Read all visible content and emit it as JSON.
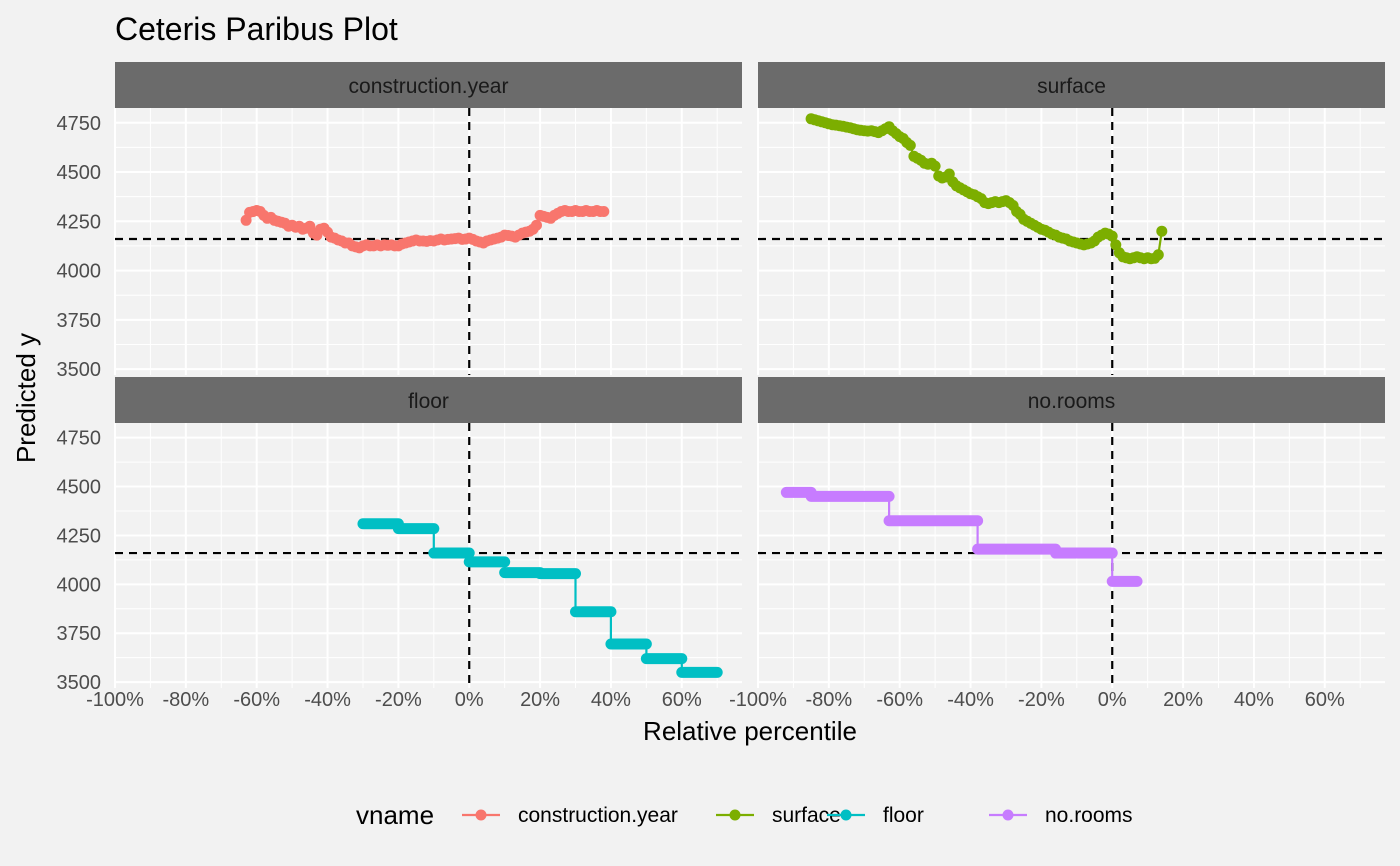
{
  "chart_data": {
    "type": "line",
    "title": "Ceteris Paribus Plot",
    "xlabel": "Relative percentile",
    "ylabel": "Predicted y",
    "xlim": [
      -100,
      77
    ],
    "ylim": [
      3470,
      4825
    ],
    "x_ticks": [
      -100,
      -80,
      -60,
      -40,
      -20,
      0,
      20,
      40,
      60
    ],
    "x_tick_labels": [
      "-100%",
      "-80%",
      "-60%",
      "-40%",
      "-20%",
      "0%",
      "20%",
      "40%",
      "60%"
    ],
    "y_ticks": [
      3500,
      3750,
      4000,
      4250,
      4500,
      4750
    ],
    "y_tick_labels": [
      "3500",
      "3750",
      "4000",
      "4250",
      "4500",
      "4750"
    ],
    "reference_lines": {
      "x": 0,
      "y": 4160
    },
    "grid": true,
    "legend": {
      "title": "vname",
      "position": "bottom",
      "entries": [
        "construction.year",
        "surface",
        "floor",
        "no.rooms"
      ]
    },
    "colors": {
      "construction.year": "#F8766D",
      "surface": "#7CAE00",
      "floor": "#00BFC4",
      "no.rooms": "#C77CFF"
    },
    "panels": [
      {
        "name": "construction.year",
        "series": [
          {
            "x": [
              -63,
              -62,
              -61,
              -60,
              -59,
              -58,
              -57,
              -56,
              -55,
              -54,
              -53,
              -52,
              -51,
              -50,
              -49,
              -48,
              -47,
              -46,
              -45,
              -44,
              -43,
              -42,
              -41,
              -40,
              -39,
              -38,
              -37,
              -36,
              -35,
              -34,
              -33,
              -32,
              -31,
              -30,
              -29,
              -28,
              -27,
              -26,
              -25,
              -24,
              -23,
              -22,
              -21,
              -20,
              -19,
              -18,
              -17,
              -16,
              -15,
              -14,
              -13,
              -12,
              -11,
              -10,
              -9,
              -8,
              -7,
              -6,
              -5,
              -4,
              -3,
              -2,
              -1,
              0,
              1,
              2,
              3,
              4,
              5,
              6,
              7,
              8,
              9,
              10,
              11,
              12,
              13,
              14,
              15,
              16,
              17,
              18,
              19,
              20,
              21,
              22,
              23,
              24,
              25,
              26,
              27,
              28,
              29,
              30,
              31,
              32,
              33,
              34,
              35,
              36,
              37,
              38
            ],
            "y": [
              4255,
              4295,
              4300,
              4305,
              4300,
              4280,
              4265,
              4270,
              4255,
              4250,
              4245,
              4240,
              4225,
              4230,
              4220,
              4225,
              4210,
              4215,
              4225,
              4190,
              4180,
              4210,
              4215,
              4195,
              4170,
              4165,
              4155,
              4150,
              4140,
              4140,
              4125,
              4120,
              4115,
              4125,
              4130,
              4125,
              4125,
              4130,
              4125,
              4130,
              4128,
              4130,
              4125,
              4125,
              4135,
              4140,
              4145,
              4150,
              4155,
              4150,
              4150,
              4148,
              4152,
              4150,
              4155,
              4160,
              4155,
              4158,
              4160,
              4162,
              4165,
              4158,
              4160,
              4165,
              4158,
              4150,
              4145,
              4140,
              4150,
              4155,
              4160,
              4165,
              4170,
              4180,
              4178,
              4175,
              4170,
              4180,
              4190,
              4195,
              4200,
              4210,
              4230,
              4280,
              4275,
              4270,
              4265,
              4280,
              4290,
              4300,
              4305,
              4300,
              4300,
              4305,
              4300,
              4300,
              4305,
              4300,
              4300,
              4305,
              4300,
              4300
            ]
          }
        ]
      },
      {
        "name": "surface",
        "series": [
          {
            "x": [
              -85,
              -84,
              -83,
              -82,
              -81,
              -80,
              -79,
              -78,
              -77,
              -76,
              -75,
              -74,
              -73,
              -72,
              -71,
              -70,
              -69,
              -68,
              -67,
              -66,
              -65,
              -64,
              -63,
              -62,
              -61,
              -60,
              -59,
              -58,
              -57,
              -56,
              -55,
              -54,
              -53,
              -52,
              -51,
              -50,
              -49,
              -48,
              -47,
              -46,
              -45,
              -44,
              -43,
              -42,
              -41,
              -40,
              -39,
              -38,
              -37,
              -36,
              -35,
              -34,
              -33,
              -32,
              -31,
              -30,
              -29,
              -28,
              -27,
              -26,
              -25,
              -24,
              -23,
              -22,
              -21,
              -20,
              -19,
              -18,
              -17,
              -16,
              -15,
              -14,
              -13,
              -12,
              -11,
              -10,
              -9,
              -8,
              -7,
              -6,
              -5,
              -4,
              -3,
              -2,
              -1,
              0,
              1,
              2,
              3,
              4,
              5,
              6,
              7,
              8,
              9,
              10,
              11,
              12,
              13,
              14
            ],
            "y": [
              4770,
              4765,
              4760,
              4755,
              4750,
              4745,
              4740,
              4738,
              4735,
              4732,
              4728,
              4725,
              4720,
              4715,
              4712,
              4710,
              4708,
              4710,
              4705,
              4700,
              4710,
              4720,
              4730,
              4710,
              4695,
              4680,
              4670,
              4650,
              4635,
              4580,
              4570,
              4560,
              4545,
              4540,
              4545,
              4530,
              4480,
              4470,
              4475,
              4490,
              4450,
              4430,
              4420,
              4410,
              4400,
              4390,
              4385,
              4375,
              4365,
              4345,
              4340,
              4345,
              4350,
              4345,
              4350,
              4355,
              4345,
              4330,
              4300,
              4285,
              4260,
              4250,
              4240,
              4230,
              4220,
              4210,
              4205,
              4195,
              4185,
              4180,
              4170,
              4165,
              4160,
              4150,
              4145,
              4140,
              4135,
              4130,
              4135,
              4140,
              4150,
              4170,
              4180,
              4190,
              4185,
              4175,
              4130,
              4090,
              4070,
              4065,
              4060,
              4065,
              4070,
              4065,
              4060,
              4065,
              4060,
              4062,
              4080,
              4200
            ]
          }
        ]
      },
      {
        "name": "floor",
        "series": [
          {
            "x": [
              -30,
              -20,
              -20,
              -10,
              -10,
              0,
              0,
              10,
              10,
              20,
              20,
              30,
              30,
              40,
              40,
              50,
              50,
              60,
              60,
              70
            ],
            "y": [
              4310,
              4310,
              4285,
              4285,
              4160,
              4160,
              4115,
              4115,
              4060,
              4060,
              4055,
              4055,
              3860,
              3860,
              3695,
              3695,
              3620,
              3620,
              3550,
              3550
            ]
          }
        ]
      },
      {
        "name": "no.rooms",
        "series": [
          {
            "x": [
              -92,
              -85,
              -85,
              -63,
              -63,
              -38,
              -38,
              -16,
              -16,
              0,
              0,
              7
            ],
            "y": [
              4470,
              4470,
              4450,
              4450,
              4325,
              4325,
              4180,
              4180,
              4160,
              4160,
              4015,
              4015
            ]
          }
        ]
      }
    ]
  }
}
